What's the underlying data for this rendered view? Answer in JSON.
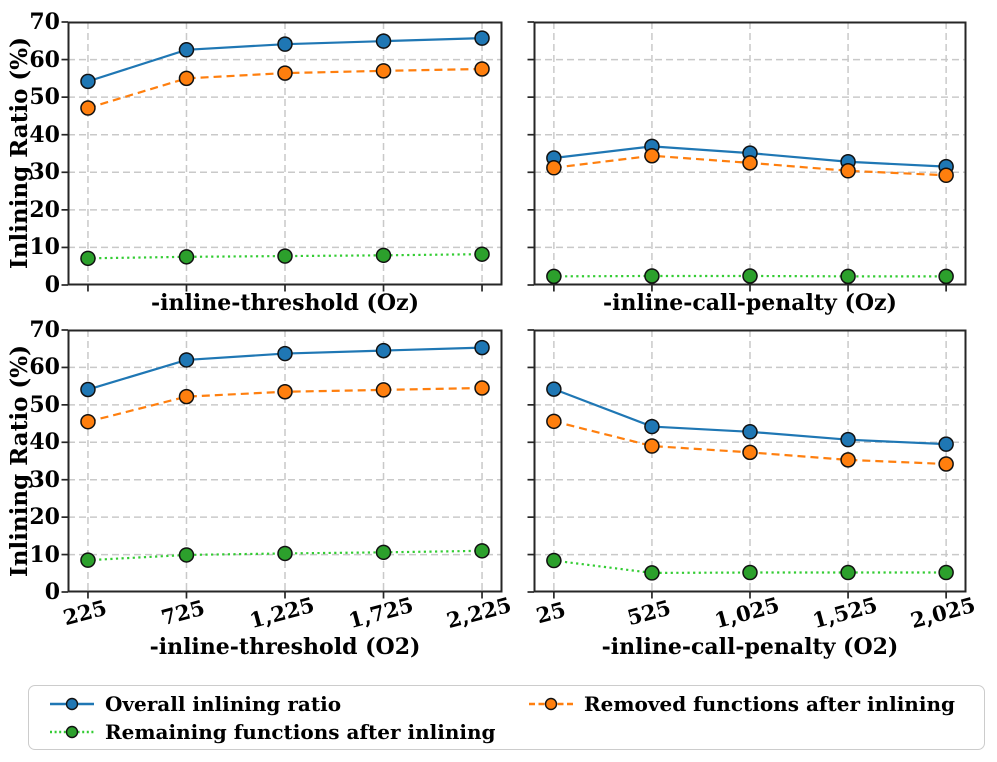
{
  "ylabel": "Inlining Ratio (%)",
  "colors": {
    "overall": "#1f77b4",
    "removed": "#ff7f0e",
    "remaining_marker": "#2ca02c",
    "remaining_line": "#33cc33",
    "grid": "#c9c9c9",
    "spine": "#262626",
    "marker_edge": "#111111"
  },
  "legend": {
    "items": [
      {
        "label": "Overall inlining ratio",
        "series": "overall"
      },
      {
        "label": "Removed functions after inlining",
        "series": "removed"
      },
      {
        "label": "Remaining functions after inlining",
        "series": "remaining"
      }
    ]
  },
  "chart_data": [
    {
      "type": "line",
      "xlabel": "-inline-threshold (Oz)",
      "x_ticklabels": null,
      "show_ytick_labels": true,
      "ylim": [
        0,
        70
      ],
      "yticks": [
        0,
        10,
        20,
        30,
        40,
        50,
        60,
        70
      ],
      "grid": true,
      "series": [
        {
          "name": "overall",
          "values": [
            54.2,
            62.6,
            64.1,
            64.9,
            65.7
          ]
        },
        {
          "name": "removed",
          "values": [
            47.1,
            55.0,
            56.4,
            57.0,
            57.5
          ]
        },
        {
          "name": "remaining",
          "values": [
            7.1,
            7.5,
            7.7,
            7.9,
            8.2
          ]
        }
      ]
    },
    {
      "type": "line",
      "xlabel": "-inline-call-penalty (Oz)",
      "x_ticklabels": null,
      "show_ytick_labels": false,
      "ylim": [
        0,
        70
      ],
      "yticks": [
        0,
        10,
        20,
        30,
        40,
        50,
        60,
        70
      ],
      "grid": true,
      "series": [
        {
          "name": "overall",
          "values": [
            33.8,
            36.9,
            35.1,
            32.8,
            31.5
          ]
        },
        {
          "name": "removed",
          "values": [
            31.2,
            34.4,
            32.5,
            30.4,
            29.2
          ]
        },
        {
          "name": "remaining",
          "values": [
            2.3,
            2.4,
            2.4,
            2.3,
            2.3
          ]
        }
      ]
    },
    {
      "type": "line",
      "xlabel": "-inline-threshold (O2)",
      "x_ticklabels": [
        "225",
        "725",
        "1,225",
        "1,725",
        "2,225"
      ],
      "show_ytick_labels": true,
      "ylim": [
        0,
        70
      ],
      "yticks": [
        0,
        10,
        20,
        30,
        40,
        50,
        60,
        70
      ],
      "grid": true,
      "series": [
        {
          "name": "overall",
          "values": [
            54.1,
            62.0,
            63.7,
            64.5,
            65.3
          ]
        },
        {
          "name": "removed",
          "values": [
            45.5,
            52.2,
            53.5,
            54.0,
            54.5
          ]
        },
        {
          "name": "remaining",
          "values": [
            8.5,
            9.9,
            10.3,
            10.6,
            11.0
          ]
        }
      ]
    },
    {
      "type": "line",
      "xlabel": "-inline-call-penalty (O2)",
      "x_ticklabels": [
        "25",
        "525",
        "1,025",
        "1,525",
        "2,025"
      ],
      "show_ytick_labels": false,
      "ylim": [
        0,
        70
      ],
      "yticks": [
        0,
        10,
        20,
        30,
        40,
        50,
        60,
        70
      ],
      "grid": true,
      "series": [
        {
          "name": "overall",
          "values": [
            54.2,
            44.2,
            42.8,
            40.7,
            39.5
          ]
        },
        {
          "name": "removed",
          "values": [
            45.6,
            39.0,
            37.3,
            35.3,
            34.2
          ]
        },
        {
          "name": "remaining",
          "values": [
            8.4,
            5.1,
            5.2,
            5.2,
            5.2
          ]
        }
      ]
    }
  ]
}
